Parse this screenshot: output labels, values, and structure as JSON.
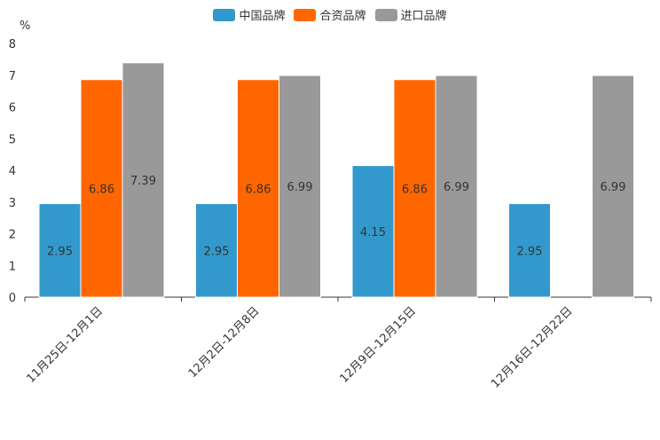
{
  "chart_data": {
    "type": "bar",
    "title": "",
    "xlabel": "",
    "ylabel": "%",
    "ylim": [
      0,
      8
    ],
    "yticks": [
      0,
      1,
      2,
      3,
      4,
      5,
      6,
      7,
      8
    ],
    "categories": [
      "11月25日-12月1日",
      "12月2日-12月8日",
      "12月9日-12月15日",
      "12月16日-12月22日"
    ],
    "series": [
      {
        "name": "中国品牌",
        "color": "#3399cc",
        "values": [
          2.95,
          2.95,
          4.15,
          2.95
        ],
        "labels": [
          "2.95",
          "2.95",
          "4.15",
          "2.95"
        ]
      },
      {
        "name": "合资品牌",
        "color": "#ff6600",
        "values": [
          6.86,
          6.86,
          6.86,
          null
        ],
        "labels": [
          "6.86",
          "6.86",
          "6.86",
          ""
        ]
      },
      {
        "name": "进口品牌",
        "color": "#999999",
        "values": [
          7.39,
          6.99,
          6.99,
          6.99
        ],
        "labels": [
          "7.39",
          "6.99",
          "6.99",
          "6.99"
        ]
      }
    ]
  }
}
